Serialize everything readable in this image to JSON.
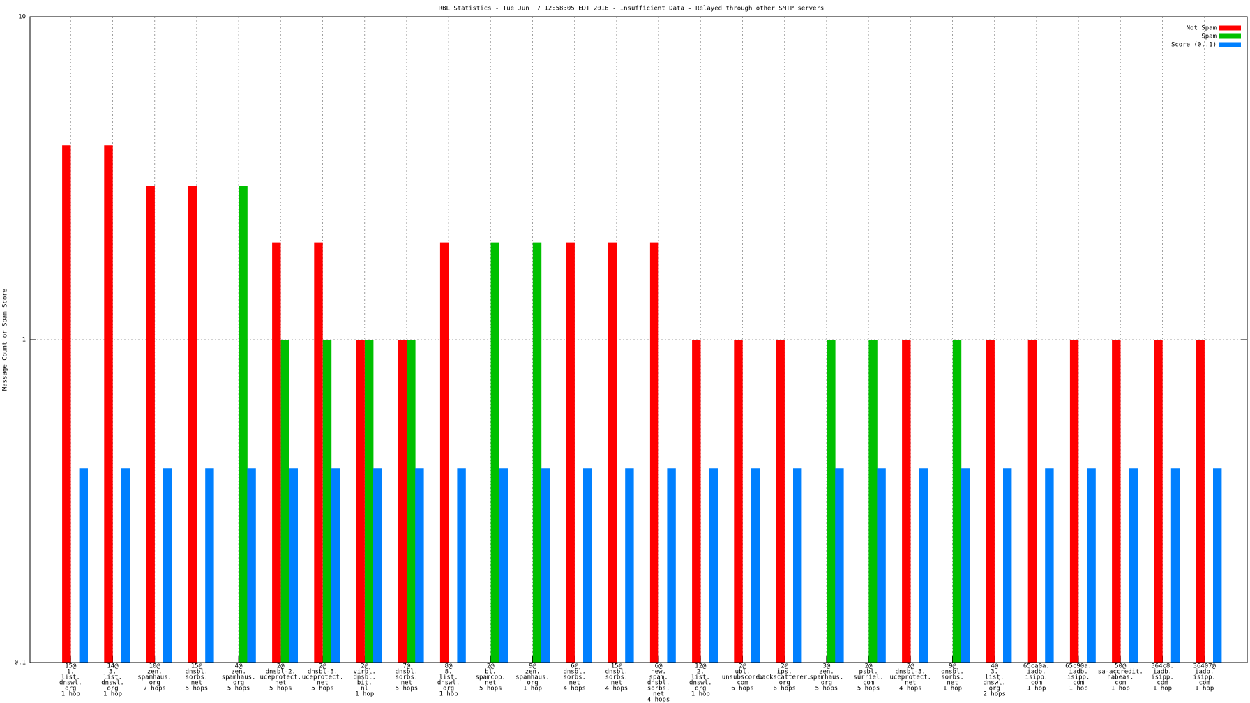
{
  "chart_data": {
    "type": "bar",
    "title": "RBL Statistics - Tue Jun  7 12:58:05 EDT 2016 - Insufficient Data - Relayed through other SMTP servers",
    "y_label": "Massage Count or Spam Score",
    "categories": [
      [
        "15@",
        "1.",
        "list.",
        "dnswl.",
        "org",
        "1 hop"
      ],
      [
        "14@",
        "3.",
        "list.",
        "dnswl.",
        "org",
        "1 hop"
      ],
      [
        "10@",
        "zen.",
        "spamhaus.",
        "org",
        "7 hops"
      ],
      [
        "15@",
        "dnsbl.",
        "sorbs.",
        "net",
        "5 hops"
      ],
      [
        "4@",
        "zen.",
        "spamhaus.",
        "org",
        "5 hops"
      ],
      [
        "2@",
        "dnsbl-2.",
        "uceprotect.",
        "net",
        "5 hops"
      ],
      [
        "2@",
        "dnsbl-3.",
        "uceprotect.",
        "net",
        "5 hops"
      ],
      [
        "2@",
        "virbl.",
        "dnsbl.",
        "bit.",
        "nl",
        "1 hop"
      ],
      [
        "7@",
        "dnsbl.",
        "sorbs.",
        "net",
        "5 hops"
      ],
      [
        "8@",
        "8.",
        "list.",
        "dnswl.",
        "org",
        "1 hop"
      ],
      [
        "2@",
        "bl.",
        "spamcop.",
        "net",
        "5 hops"
      ],
      [
        "9@",
        "zen.",
        "spamhaus.",
        "org",
        "1 hop"
      ],
      [
        "6@",
        "dnsbl.",
        "sorbs.",
        "net",
        "4 hops"
      ],
      [
        "15@",
        "dnsbl.",
        "sorbs.",
        "net",
        "4 hops"
      ],
      [
        "6@",
        "new.",
        "spam.",
        "dnsbl.",
        "sorbs.",
        "net",
        "4 hops"
      ],
      [
        "12@",
        "2.",
        "list.",
        "dnswl.",
        "org",
        "1 hop"
      ],
      [
        "2@",
        "ubl.",
        "unsubscore.",
        "com",
        "6 hops"
      ],
      [
        "2@",
        "ips.",
        "backscatterer.",
        "org",
        "6 hops"
      ],
      [
        "3@",
        "zen.",
        "spamhaus.",
        "org",
        "5 hops"
      ],
      [
        "2@",
        "psbl.",
        "surriel.",
        "com",
        "5 hops"
      ],
      [
        "2@",
        "dnsbl-3.",
        "uceprotect.",
        "net",
        "4 hops"
      ],
      [
        "9@",
        "dnsbl.",
        "sorbs.",
        "net",
        "1 hop"
      ],
      [
        "4@",
        "3.",
        "list.",
        "dnswl.",
        "org",
        "2 hops"
      ],
      [
        "65ca0a.",
        "iadb.",
        "isipp.",
        "com",
        "1 hop"
      ],
      [
        "65c90a.",
        "iadb.",
        "isipp.",
        "com",
        "1 hop"
      ],
      [
        "50@",
        "sa-accredit.",
        "habeas.",
        "com",
        "1 hop"
      ],
      [
        "364c8.",
        "iadb.",
        "isipp.",
        "com",
        "1 hop"
      ],
      [
        "36407@",
        "iadb.",
        "isipp.",
        "com",
        "1 hop"
      ]
    ],
    "series": [
      {
        "name": "Not Spam",
        "color": "#ff0000",
        "values": [
          4,
          4,
          3,
          3,
          null,
          2,
          2,
          1,
          1,
          2,
          null,
          null,
          2,
          2,
          2,
          1,
          1,
          1,
          null,
          null,
          1,
          null,
          1,
          1,
          1,
          1,
          1,
          1
        ]
      },
      {
        "name": "Spam",
        "color": "#00c000",
        "values": [
          null,
          null,
          null,
          null,
          3,
          1,
          1,
          1,
          1,
          null,
          2,
          2,
          null,
          null,
          null,
          null,
          null,
          null,
          1,
          1,
          null,
          1,
          null,
          null,
          null,
          null,
          null,
          null
        ]
      },
      {
        "name": "Score (0..1)",
        "color": "#0080ff",
        "values": [
          0.4,
          0.4,
          0.4,
          0.4,
          0.4,
          0.4,
          0.4,
          0.4,
          0.4,
          0.4,
          0.4,
          0.4,
          0.4,
          0.4,
          0.4,
          0.4,
          0.4,
          0.4,
          0.4,
          0.4,
          0.4,
          0.4,
          0.4,
          0.4,
          0.4,
          0.4,
          0.4,
          0.4
        ]
      }
    ],
    "ylim": [
      0.1,
      10
    ],
    "yticks": [
      0.1,
      1,
      10
    ],
    "log_y": true,
    "grid": true,
    "legend": "top-right"
  }
}
